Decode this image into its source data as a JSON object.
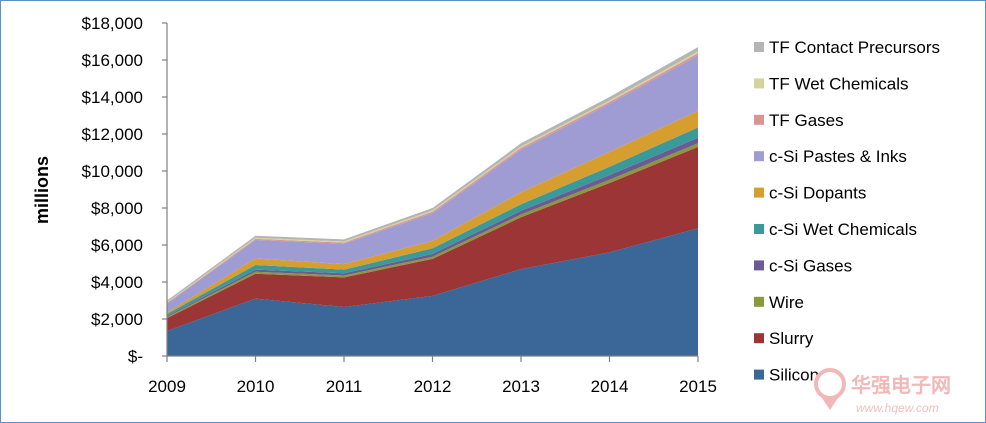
{
  "chart_data": {
    "type": "area",
    "stacked": true,
    "x": [
      "2009",
      "2010",
      "2011",
      "2012",
      "2013",
      "2014",
      "2015"
    ],
    "ylabel": "millions",
    "ylim": [
      0,
      18000
    ],
    "yticks": [
      0,
      2000,
      4000,
      6000,
      8000,
      10000,
      12000,
      14000,
      16000,
      18000
    ],
    "ytick_labels": [
      "$-",
      "$2,000",
      "$4,000",
      "$6,000",
      "$8,000",
      "$10,000",
      "$12,000",
      "$14,000",
      "$16,000",
      "$18,000"
    ],
    "legend_position": "right",
    "series": [
      {
        "name": "Silicon",
        "color": "#3a6797",
        "values": [
          1350,
          3100,
          2650,
          3250,
          4700,
          5600,
          6900
        ]
      },
      {
        "name": "Slurry",
        "color": "#9c3535",
        "values": [
          700,
          1350,
          1600,
          2000,
          2800,
          3750,
          4400
        ]
      },
      {
        "name": "Wire",
        "color": "#8a9a3a",
        "values": [
          60,
          100,
          100,
          120,
          150,
          180,
          200
        ]
      },
      {
        "name": "c-Si Gases",
        "color": "#6b5a94",
        "values": [
          60,
          120,
          120,
          150,
          200,
          250,
          300
        ]
      },
      {
        "name": "c-Si Wet Chemicals",
        "color": "#3a9a99",
        "values": [
          100,
          250,
          200,
          300,
          350,
          450,
          550
        ]
      },
      {
        "name": "c-Si Dopants",
        "color": "#d69e2e",
        "values": [
          80,
          350,
          300,
          400,
          650,
          800,
          900
        ]
      },
      {
        "name": "c-Si Pastes & Inks",
        "color": "#9f9bd3",
        "values": [
          480,
          1000,
          1100,
          1500,
          2300,
          2600,
          3000
        ]
      },
      {
        "name": "TF Gases",
        "color": "#d99595",
        "values": [
          40,
          60,
          60,
          80,
          100,
          100,
          120
        ]
      },
      {
        "name": "TF Wet Chemicals",
        "color": "#d4d49a",
        "values": [
          40,
          60,
          60,
          70,
          80,
          80,
          100
        ]
      },
      {
        "name": "TF Contact Precursors",
        "color": "#b5b5b5",
        "values": [
          90,
          110,
          110,
          130,
          170,
          190,
          230
        ]
      }
    ]
  },
  "watermark": {
    "text_cn": "华强电子网",
    "url": "www.hqew.com"
  }
}
